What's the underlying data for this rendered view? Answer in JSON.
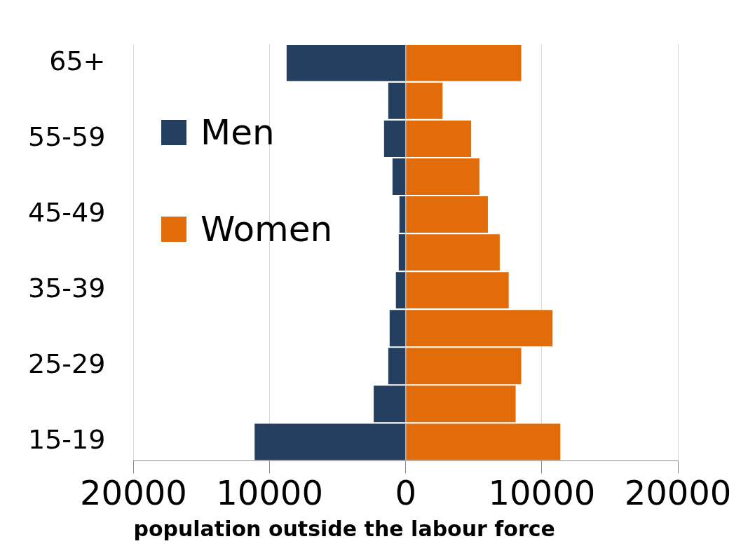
{
  "chart_data": {
    "type": "bar",
    "orientation": "horizontal",
    "stacked": true,
    "xlabel": "population outside the labour force",
    "categories": [
      "65+",
      null,
      "55-59",
      null,
      "45-49",
      null,
      "35-39",
      null,
      "25-29",
      null,
      "15-19"
    ],
    "series": [
      {
        "name": "Men",
        "color": "#253f60",
        "values": [
          -8750,
          -1280,
          -1590,
          -970,
          -460,
          -510,
          -720,
          -1180,
          -1280,
          -2350,
          -11100
        ]
      },
      {
        "name": "Women",
        "color": "#e36c0a",
        "values": [
          8490,
          2710,
          4810,
          5420,
          6040,
          6910,
          7570,
          10790,
          8490,
          8080,
          11360
        ]
      }
    ],
    "xlim": [
      -20000,
      20000
    ],
    "xticks": [
      {
        "value": -20000,
        "label": "20000"
      },
      {
        "value": -10000,
        "label": "10000"
      },
      0,
      10000,
      20000
    ],
    "grid": "x",
    "legend": "left"
  }
}
